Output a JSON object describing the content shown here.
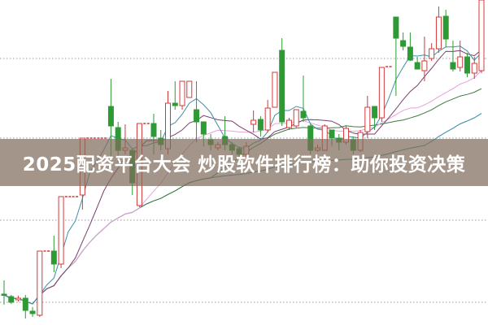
{
  "headline": "2025配资平台大会 炒股软件排行榜：助你投资决策",
  "chart_data": {
    "type": "candlestick",
    "title": "",
    "xlabel": "",
    "ylabel": "",
    "ylim": [
      0,
      40
    ],
    "grid": true,
    "legend": "none",
    "colors": {
      "up": "#d23a3a",
      "down": "#2e9a35",
      "ma5": "#3a93a8",
      "ma10": "#7b3e6e",
      "ma20": "#e7a2dc",
      "ma30": "#3d7a3d",
      "ma60": "#2f8aa5",
      "grid": "#9a9a9a"
    },
    "moving_averages": [
      5,
      10,
      20,
      30,
      60
    ],
    "candles_ohlc": [
      [
        3.8,
        5.5,
        2.5,
        3.7
      ],
      [
        3.5,
        3.7,
        2.6,
        2.8
      ],
      [
        3.1,
        3.6,
        2.9,
        3.3
      ],
      [
        3.3,
        3.7,
        0.8,
        1.8
      ],
      [
        1.7,
        2.2,
        1.0,
        1.4
      ],
      [
        1.2,
        9.1,
        1.0,
        9.1
      ],
      [
        9.1,
        9.1,
        9.1,
        9.1
      ],
      [
        9.1,
        11.0,
        6.5,
        7.5
      ],
      [
        7.5,
        15.8,
        7.0,
        15.8
      ],
      [
        15.8,
        15.8,
        15.8,
        15.8
      ],
      [
        15.8,
        15.8,
        15.8,
        15.8
      ],
      [
        16.0,
        23.0,
        14.2,
        23.0
      ],
      [
        23.0,
        23.0,
        23.0,
        23.0
      ],
      [
        23.0,
        23.0,
        23.0,
        23.0
      ],
      [
        23.0,
        23.0,
        23.0,
        23.0
      ],
      [
        26.9,
        30.3,
        20.0,
        24.5
      ],
      [
        24.3,
        25.0,
        20.0,
        21.5
      ],
      [
        21.5,
        24.7,
        21.0,
        21.8
      ],
      [
        21.5,
        21.7,
        16.0,
        17.5
      ],
      [
        14.7,
        24.8,
        14.5,
        24.8
      ],
      [
        24.8,
        24.8,
        24.8,
        24.8
      ],
      [
        24.8,
        26.0,
        21.0,
        23.2
      ],
      [
        23.0,
        24.0,
        21.5,
        22.2
      ],
      [
        21.7,
        28.8,
        21.0,
        27.3
      ],
      [
        27.3,
        30.0,
        26.5,
        27.0
      ],
      [
        27.0,
        30.0,
        26.5,
        30.0
      ],
      [
        28.0,
        30.0,
        28.0,
        30.0
      ],
      [
        26.5,
        30.0,
        22.5,
        25.0
      ],
      [
        25.0,
        25.0,
        22.0,
        23.5
      ],
      [
        22.8,
        23.5,
        21.5,
        22.2
      ],
      [
        21.8,
        22.5,
        21.5,
        22.2
      ],
      [
        23.2,
        25.7,
        21.5,
        22.2
      ],
      [
        22.2,
        22.5,
        21.0,
        21.5
      ],
      [
        21.7,
        22.0,
        20.5,
        21.0
      ],
      [
        21.0,
        22.5,
        20.5,
        22.0
      ],
      [
        24.7,
        26.4,
        23.7,
        25.2
      ],
      [
        25.3,
        25.7,
        23.2,
        24.0
      ],
      [
        24.0,
        27.7,
        23.7,
        26.7
      ],
      [
        26.8,
        31.1,
        26.8,
        31.1
      ],
      [
        33.8,
        35.3,
        24.5,
        25.0
      ],
      [
        24.3,
        25.5,
        24.0,
        25.2
      ],
      [
        24.5,
        26.5,
        24.3,
        26.5
      ],
      [
        26.3,
        30.7,
        25.0,
        25.5
      ],
      [
        24.5,
        24.7,
        21.0,
        21.5
      ],
      [
        21.5,
        22.2,
        21.3,
        21.8
      ],
      [
        21.5,
        24.7,
        21.5,
        24.5
      ],
      [
        24.0,
        24.0,
        22.0,
        23.0
      ],
      [
        23.0,
        23.5,
        21.5,
        22.5
      ],
      [
        22.5,
        24.5,
        22.2,
        24.2
      ],
      [
        22.8,
        23.2,
        21.0,
        21.5
      ],
      [
        21.5,
        24.0,
        21.3,
        23.7
      ],
      [
        23.8,
        28.2,
        23.0,
        26.8
      ],
      [
        26.9,
        26.9,
        24.0,
        25.5
      ],
      [
        25.5,
        31.7,
        25.0,
        31.7
      ],
      [
        31.8,
        31.8,
        31.8,
        31.8
      ],
      [
        37.9,
        37.9,
        28.2,
        35.3
      ],
      [
        35.0,
        36.0,
        33.8,
        34.3
      ],
      [
        34.2,
        36.0,
        32.5,
        32.6
      ],
      [
        32.3,
        33.0,
        31.5,
        31.5
      ],
      [
        31.3,
        35.5,
        30.0,
        32.5
      ],
      [
        32.8,
        34.7,
        32.5,
        34.0
      ],
      [
        34.0,
        39.2,
        33.5,
        37.9
      ],
      [
        38.0,
        38.8,
        34.2,
        35.2
      ],
      [
        32.3,
        35.0,
        31.2,
        31.5
      ],
      [
        31.7,
        35.0,
        31.2,
        33.0
      ],
      [
        33.0,
        33.5,
        30.5,
        31.0
      ],
      [
        31.0,
        33.0,
        30.3,
        32.2
      ],
      [
        31.3,
        40.0,
        31.0,
        40.0
      ]
    ]
  }
}
